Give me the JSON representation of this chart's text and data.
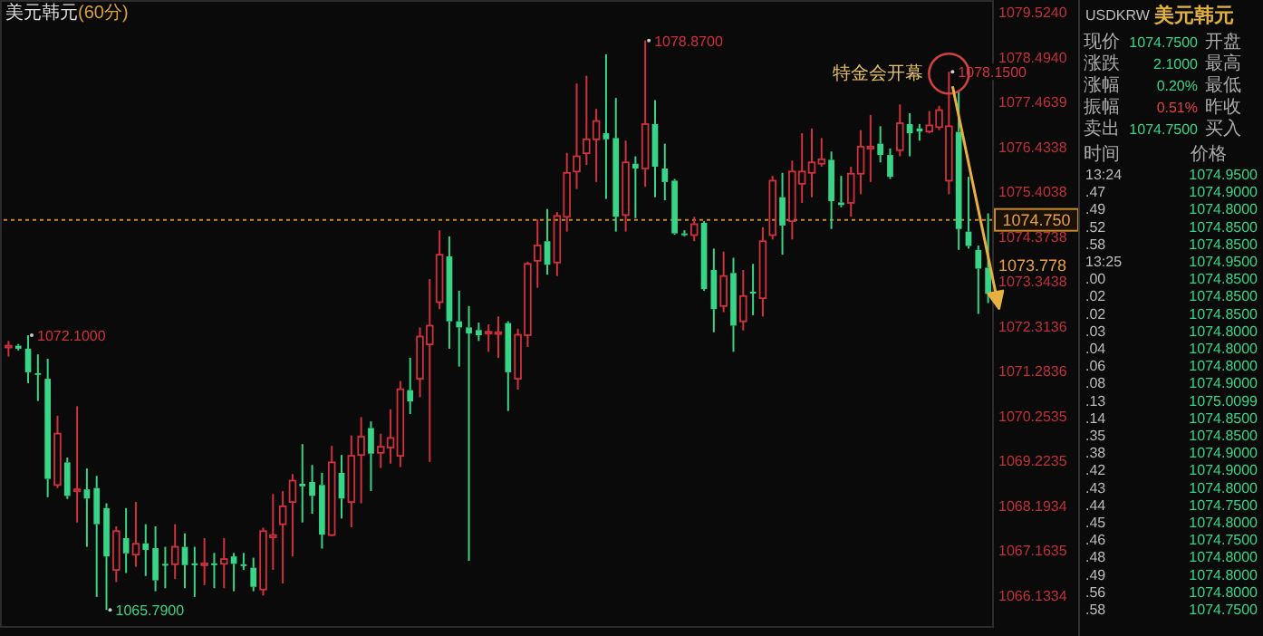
{
  "chart_data": [
    {
      "type": "candlestick",
      "title": "美元韩元",
      "subtitle": "(60分)",
      "categories": [
        null,
        null,
        null,
        null,
        null,
        null,
        null,
        null,
        null,
        null,
        null,
        null,
        null,
        null,
        null,
        null,
        null,
        null,
        null,
        null,
        null,
        null,
        null,
        null,
        null,
        null,
        null,
        null,
        null,
        null,
        null,
        null,
        null,
        null,
        null,
        null,
        null,
        null,
        null,
        null,
        null,
        null,
        null,
        null,
        null,
        null,
        null,
        null,
        null,
        null,
        null,
        null,
        null,
        null,
        null,
        null,
        null,
        null,
        null,
        null,
        null,
        null,
        null,
        null,
        null,
        null,
        null,
        null,
        null,
        null,
        null,
        null,
        null,
        null,
        null,
        null,
        null,
        null,
        null,
        null,
        null,
        null,
        null,
        null,
        null,
        null,
        null,
        null,
        null,
        null,
        null,
        null,
        null,
        null,
        null,
        null,
        null,
        null,
        null,
        null,
        null
      ],
      "ohlc": [
        [
          1071.82,
          1071.97,
          1071.61,
          1071.86
        ],
        [
          1071.86,
          1071.9,
          1071.75,
          1071.79
        ],
        [
          1071.79,
          1072.1,
          1071.0,
          1071.25
        ],
        [
          1071.23,
          1071.66,
          1070.59,
          1071.2
        ],
        [
          1071.1,
          1071.56,
          1068.38,
          1068.8
        ],
        [
          1068.66,
          1070.25,
          1068.59,
          1069.84
        ],
        [
          1069.18,
          1069.29,
          1068.34,
          1068.41
        ],
        [
          1068.53,
          1070.47,
          1067.8,
          1068.56
        ],
        [
          1068.56,
          1069.04,
          1067.24,
          1068.35
        ],
        [
          1068.59,
          1068.87,
          1066.09,
          1067.76
        ],
        [
          1068.13,
          1068.24,
          1065.79,
          1067.02
        ],
        [
          1066.71,
          1067.71,
          1066.43,
          1067.6
        ],
        [
          1067.44,
          1068.13,
          1066.64,
          1067.09
        ],
        [
          1067.06,
          1068.27,
          1066.78,
          1067.31
        ],
        [
          1067.32,
          1067.76,
          1066.57,
          1067.17
        ],
        [
          1067.21,
          1067.71,
          1066.22,
          1066.47
        ],
        [
          1066.85,
          1067.24,
          1066.29,
          1066.84
        ],
        [
          1066.84,
          1067.76,
          1066.5,
          1067.24
        ],
        [
          1067.24,
          1067.55,
          1066.29,
          1066.82
        ],
        [
          1066.86,
          1067.24,
          1066.09,
          1066.84
        ],
        [
          1066.84,
          1067.44,
          1066.36,
          1066.86
        ],
        [
          1066.86,
          1067.1,
          1066.29,
          1066.84
        ],
        [
          1066.85,
          1067.44,
          1066.29,
          1066.96
        ],
        [
          1067.02,
          1067.1,
          1066.22,
          1066.85
        ],
        [
          1066.84,
          1067.1,
          1066.71,
          1066.81
        ],
        [
          1066.76,
          1066.99,
          1066.22,
          1066.32
        ],
        [
          1066.26,
          1067.68,
          1066.12,
          1067.6
        ],
        [
          1067.46,
          1068.45,
          1066.71,
          1067.51
        ],
        [
          1067.76,
          1068.52,
          1066.4,
          1068.17
        ],
        [
          1068.27,
          1068.91,
          1067.02,
          1068.76
        ],
        [
          1068.69,
          1069.6,
          1067.8,
          1068.63
        ],
        [
          1068.73,
          1069.12,
          1068.0,
          1068.41
        ],
        [
          1068.66,
          1068.94,
          1067.2,
          1067.52
        ],
        [
          1067.51,
          1069.56,
          1067.48,
          1069.18
        ],
        [
          1068.94,
          1069.35,
          1067.89,
          1068.35
        ],
        [
          1068.27,
          1069.8,
          1067.69,
          1069.33
        ],
        [
          1069.35,
          1070.22,
          1068.24,
          1069.77
        ],
        [
          1069.97,
          1070.12,
          1068.52,
          1069.38
        ],
        [
          1069.4,
          1069.84,
          1069.05,
          1069.54
        ],
        [
          1069.52,
          1070.4,
          1069.15,
          1069.74
        ],
        [
          1069.33,
          1071.05,
          1069.07,
          1070.86
        ],
        [
          1070.84,
          1071.58,
          1070.29,
          1070.58
        ],
        [
          1071.1,
          1072.28,
          1070.68,
          1072.07
        ],
        [
          1071.89,
          1073.39,
          1069.19,
          1072.32
        ],
        [
          1072.86,
          1074.51,
          1072.7,
          1073.95
        ],
        [
          1073.91,
          1074.37,
          1071.79,
          1072.42
        ],
        [
          1072.42,
          1073.12,
          1071.38,
          1072.28
        ],
        [
          1072.28,
          1072.77,
          1066.92,
          1072.14
        ],
        [
          1072.22,
          1072.39,
          1071.97,
          1072.1
        ],
        [
          1072.15,
          1072.35,
          1071.72,
          1072.18
        ],
        [
          1072.14,
          1072.53,
          1071.58,
          1072.17
        ],
        [
          1072.38,
          1072.42,
          1070.36,
          1071.25
        ],
        [
          1071.1,
          1072.25,
          1070.85,
          1072.11
        ],
        [
          1072.1,
          1073.79,
          1071.83,
          1073.74
        ],
        [
          1073.81,
          1074.76,
          1073.19,
          1074.16
        ],
        [
          1074.26,
          1075.0,
          1073.49,
          1073.72
        ],
        [
          1073.77,
          1074.93,
          1073.46,
          1074.84
        ],
        [
          1074.82,
          1076.29,
          1074.48,
          1075.83
        ],
        [
          1075.86,
          1077.88,
          1075.46,
          1076.21
        ],
        [
          1076.28,
          1078.06,
          1076.01,
          1076.6
        ],
        [
          1076.6,
          1077.3,
          1075.62,
          1077.02
        ],
        [
          1076.74,
          1078.55,
          1075.23,
          1076.6
        ],
        [
          1076.63,
          1077.55,
          1074.48,
          1074.82
        ],
        [
          1074.86,
          1076.57,
          1074.48,
          1076.07
        ],
        [
          1076.04,
          1076.21,
          1074.79,
          1075.93
        ],
        [
          1075.93,
          1078.87,
          1075.51,
          1076.95
        ],
        [
          1076.95,
          1077.5,
          1075.27,
          1075.97
        ],
        [
          1075.93,
          1076.5,
          1075.2,
          1075.62
        ],
        [
          1075.65,
          1075.69,
          1074.41,
          1074.44
        ],
        [
          1074.44,
          1074.51,
          1074.37,
          1074.4
        ],
        [
          1074.4,
          1074.82,
          1074.26,
          1074.65
        ],
        [
          1074.68,
          1074.72,
          1073.12,
          1073.16
        ],
        [
          1073.6,
          1074.09,
          1072.17,
          1072.7
        ],
        [
          1072.77,
          1074.02,
          1072.63,
          1073.46
        ],
        [
          1073.53,
          1073.88,
          1071.72,
          1072.32
        ],
        [
          1072.42,
          1073.6,
          1072.21,
          1073.0
        ],
        [
          1073.1,
          1073.74,
          1072.56,
          1073.07
        ],
        [
          1072.95,
          1074.58,
          1072.53,
          1074.26
        ],
        [
          1074.4,
          1075.76,
          1074.3,
          1075.65
        ],
        [
          1075.27,
          1075.83,
          1073.95,
          1074.62
        ],
        [
          1074.72,
          1076.11,
          1074.3,
          1075.86
        ],
        [
          1075.58,
          1076.74,
          1075.14,
          1075.86
        ],
        [
          1075.83,
          1076.85,
          1075.27,
          1076.07
        ],
        [
          1076.04,
          1076.63,
          1075.97,
          1076.14
        ],
        [
          1076.13,
          1076.32,
          1074.54,
          1075.18
        ],
        [
          1075.15,
          1075.76,
          1075.04,
          1075.09
        ],
        [
          1075.14,
          1075.97,
          1074.82,
          1075.81
        ],
        [
          1075.81,
          1076.81,
          1075.34,
          1076.43
        ],
        [
          1076.4,
          1077.16,
          1075.62,
          1076.43
        ],
        [
          1076.5,
          1076.9,
          1076.07,
          1076.24
        ],
        [
          1076.24,
          1076.39,
          1075.69,
          1075.74
        ],
        [
          1076.35,
          1077.4,
          1076.21,
          1076.97
        ],
        [
          1076.95,
          1077.2,
          1076.21,
          1076.74
        ],
        [
          1076.85,
          1076.95,
          1076.57,
          1076.78
        ],
        [
          1076.78,
          1077.25,
          1076.74,
          1076.92
        ],
        [
          1076.88,
          1077.37,
          1076.81,
          1077.27
        ],
        [
          1075.65,
          1078.15,
          1075.34,
          1076.9
        ],
        [
          1076.77,
          1077.71,
          1074.06,
          1074.54
        ],
        [
          1074.48,
          1075.74,
          1074.09,
          1074.15
        ],
        [
          1074.06,
          1074.16,
          1072.59,
          1073.63
        ],
        [
          1073.65,
          1074.9,
          1072.84,
          1073.05
        ]
      ],
      "ylim": [
        1065.4,
        1079.8
      ],
      "yticks": [
        1066.1334,
        1067.1635,
        1068.1934,
        1069.2235,
        1070.2535,
        1071.2836,
        1072.3136,
        1073.3438,
        1074.3738,
        1075.4038,
        1076.4338,
        1077.4639,
        {
          "value": 1078.494,
          "label": "1078.4940"
        },
        {
          "value": 1079.524,
          "label": "1079.5240"
        }
      ],
      "ref_lines": [
        {
          "axis": "y",
          "value": 1074.75,
          "label": "1074.750",
          "color": "#c8892e",
          "line_style": "dotted"
        }
      ],
      "annotations": [
        "特金会开幕",
        "1072.1000",
        "1065.7900",
        "1078.8700",
        "1078.1500",
        "1073.778"
      ]
    },
    {
      "type": "other",
      "title": "USDKRW",
      "subtitle": "美元韩元",
      "annotations": [
        "现价",
        "1074.7500",
        "开盘",
        "涨跌",
        "2.1000",
        "最高",
        "涨幅",
        "0.20%",
        "最低",
        "振幅",
        "0.51%",
        "昨收",
        "卖出",
        "1074.7500",
        "买入",
        "时间",
        "价格",
        "13:24",
        "1074.9500",
        ".47",
        "1074.9000",
        ".49",
        "1074.8000",
        ".52",
        "1074.8500",
        ".58",
        "1074.8500",
        "13:25",
        "1074.9500",
        ".00",
        "1074.8500",
        ".02",
        "1074.8500",
        ".02",
        "1074.8500",
        ".03",
        "1074.8000",
        ".04",
        "1074.8000",
        ".06",
        "1074.8000",
        ".08",
        "1074.9000",
        ".13",
        "1075.0099",
        ".14",
        "1074.8500",
        ".35",
        "1074.8500",
        ".38",
        "1074.9000",
        ".42",
        "1074.9000",
        ".43",
        "1074.8000",
        ".44",
        "1074.7500",
        ".45",
        "1074.8000",
        ".46",
        "1074.7500",
        ".48",
        "1074.8000",
        ".49",
        "1074.8000",
        ".56",
        "1074.8000",
        ".58",
        "1074.7500"
      ]
    }
  ]
}
